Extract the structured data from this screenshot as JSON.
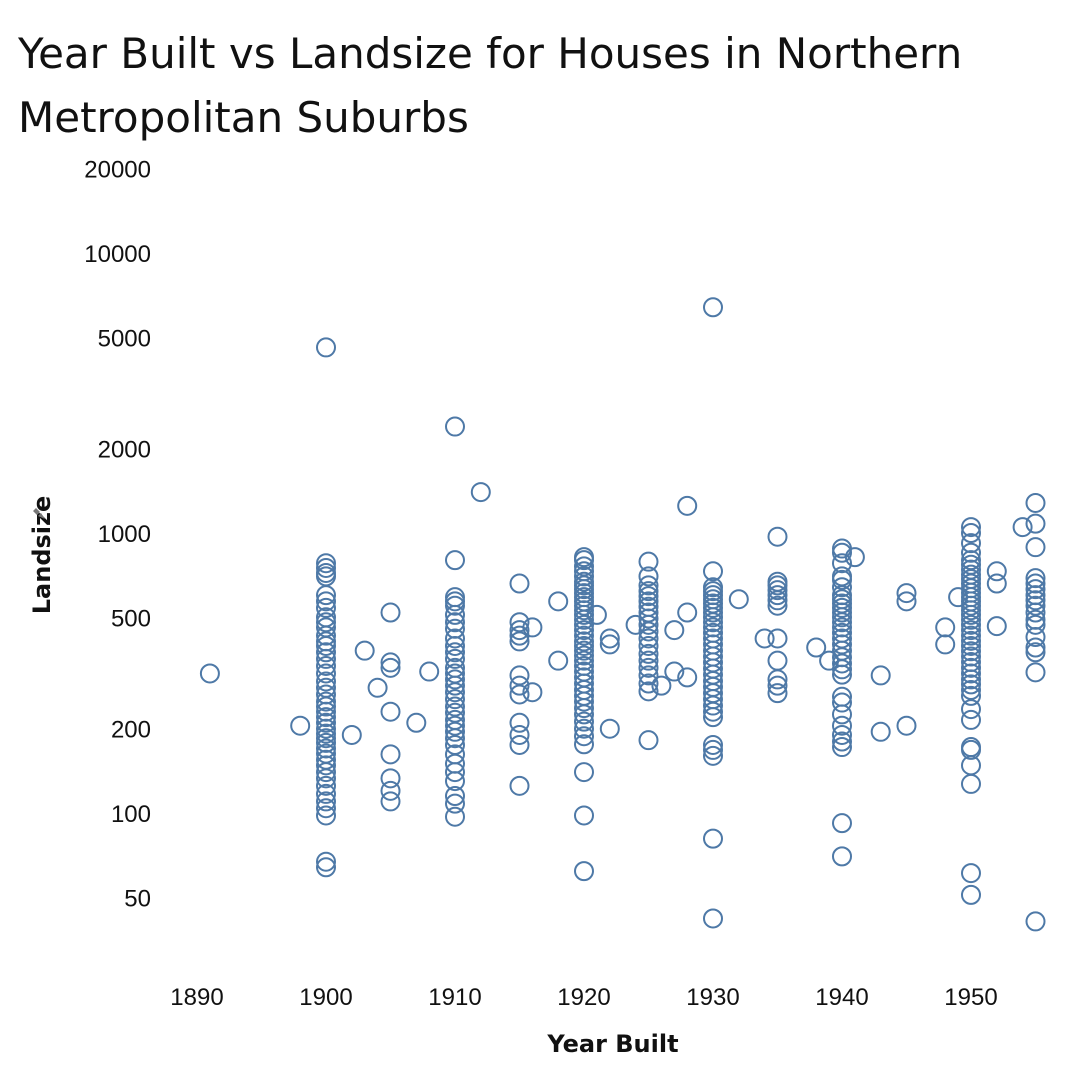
{
  "chart_data": {
    "type": "scatter",
    "title": "Year Built vs Landsize for Houses in Northern Metropolitan Suburbs",
    "xlabel": "Year Built",
    "ylabel": "Landsize",
    "x_scale": "linear",
    "y_scale": "log",
    "xlim": [
      1885,
      1957
    ],
    "ylim": [
      35,
      20000
    ],
    "x_ticks": [
      1890,
      1900,
      1910,
      1920,
      1930,
      1940,
      1950
    ],
    "y_ticks": [
      50,
      100,
      200,
      500,
      1000,
      2000,
      5000,
      10000,
      20000
    ],
    "marker_color": "#4e79a7",
    "grid": false,
    "points": [
      [
        1891,
        315
      ],
      [
        1898,
        205
      ],
      [
        1900,
        4600
      ],
      [
        1900,
        780
      ],
      [
        1900,
        750
      ],
      [
        1900,
        720
      ],
      [
        1900,
        700
      ],
      [
        1900,
        600
      ],
      [
        1900,
        570
      ],
      [
        1900,
        540
      ],
      [
        1900,
        500
      ],
      [
        1900,
        480
      ],
      [
        1900,
        460
      ],
      [
        1900,
        430
      ],
      [
        1900,
        410
      ],
      [
        1900,
        395
      ],
      [
        1900,
        375
      ],
      [
        1900,
        355
      ],
      [
        1900,
        335
      ],
      [
        1900,
        315
      ],
      [
        1900,
        295
      ],
      [
        1900,
        280
      ],
      [
        1900,
        265
      ],
      [
        1900,
        250
      ],
      [
        1900,
        240
      ],
      [
        1900,
        230
      ],
      [
        1900,
        220
      ],
      [
        1900,
        210
      ],
      [
        1900,
        200
      ],
      [
        1900,
        192
      ],
      [
        1900,
        185
      ],
      [
        1900,
        178
      ],
      [
        1900,
        170
      ],
      [
        1900,
        163
      ],
      [
        1900,
        155
      ],
      [
        1900,
        148
      ],
      [
        1900,
        140
      ],
      [
        1900,
        133
      ],
      [
        1900,
        125
      ],
      [
        1900,
        117
      ],
      [
        1900,
        110
      ],
      [
        1900,
        104
      ],
      [
        1900,
        98
      ],
      [
        1900,
        67
      ],
      [
        1900,
        64
      ],
      [
        1902,
        190
      ],
      [
        1903,
        380
      ],
      [
        1904,
        280
      ],
      [
        1905,
        520
      ],
      [
        1905,
        345
      ],
      [
        1905,
        330
      ],
      [
        1905,
        230
      ],
      [
        1905,
        162
      ],
      [
        1905,
        133
      ],
      [
        1905,
        120
      ],
      [
        1905,
        110
      ],
      [
        1907,
        210
      ],
      [
        1908,
        320
      ],
      [
        1910,
        2400
      ],
      [
        1910,
        800
      ],
      [
        1910,
        590
      ],
      [
        1910,
        570
      ],
      [
        1910,
        550
      ],
      [
        1910,
        510
      ],
      [
        1910,
        480
      ],
      [
        1910,
        455
      ],
      [
        1910,
        420
      ],
      [
        1910,
        395
      ],
      [
        1910,
        375
      ],
      [
        1910,
        355
      ],
      [
        1910,
        330
      ],
      [
        1910,
        315
      ],
      [
        1910,
        300
      ],
      [
        1910,
        285
      ],
      [
        1910,
        270
      ],
      [
        1910,
        255
      ],
      [
        1910,
        240
      ],
      [
        1910,
        228
      ],
      [
        1910,
        215
      ],
      [
        1910,
        205
      ],
      [
        1910,
        195
      ],
      [
        1910,
        185
      ],
      [
        1910,
        175
      ],
      [
        1910,
        162
      ],
      [
        1910,
        150
      ],
      [
        1910,
        140
      ],
      [
        1910,
        130
      ],
      [
        1910,
        115
      ],
      [
        1910,
        108
      ],
      [
        1910,
        97
      ],
      [
        1912,
        1400
      ],
      [
        1915,
        660
      ],
      [
        1915,
        480
      ],
      [
        1915,
        450
      ],
      [
        1915,
        430
      ],
      [
        1915,
        410
      ],
      [
        1915,
        310
      ],
      [
        1915,
        285
      ],
      [
        1915,
        265
      ],
      [
        1915,
        210
      ],
      [
        1915,
        190
      ],
      [
        1915,
        175
      ],
      [
        1915,
        125
      ],
      [
        1916,
        270
      ],
      [
        1916,
        460
      ],
      [
        1918,
        570
      ],
      [
        1918,
        350
      ],
      [
        1920,
        820
      ],
      [
        1920,
        800
      ],
      [
        1920,
        760
      ],
      [
        1920,
        730
      ],
      [
        1920,
        700
      ],
      [
        1920,
        670
      ],
      [
        1920,
        650
      ],
      [
        1920,
        630
      ],
      [
        1920,
        610
      ],
      [
        1920,
        590
      ],
      [
        1920,
        570
      ],
      [
        1920,
        550
      ],
      [
        1920,
        530
      ],
      [
        1920,
        510
      ],
      [
        1920,
        490
      ],
      [
        1920,
        470
      ],
      [
        1920,
        450
      ],
      [
        1920,
        430
      ],
      [
        1920,
        410
      ],
      [
        1920,
        395
      ],
      [
        1920,
        380
      ],
      [
        1920,
        365
      ],
      [
        1920,
        350
      ],
      [
        1920,
        335
      ],
      [
        1920,
        320
      ],
      [
        1920,
        305
      ],
      [
        1920,
        290
      ],
      [
        1920,
        275
      ],
      [
        1920,
        262
      ],
      [
        1920,
        250
      ],
      [
        1920,
        237
      ],
      [
        1920,
        225
      ],
      [
        1920,
        212
      ],
      [
        1920,
        200
      ],
      [
        1920,
        188
      ],
      [
        1920,
        176
      ],
      [
        1920,
        140
      ],
      [
        1920,
        98
      ],
      [
        1920,
        62
      ],
      [
        1921,
        510
      ],
      [
        1922,
        420
      ],
      [
        1922,
        400
      ],
      [
        1922,
        200
      ],
      [
        1924,
        470
      ],
      [
        1925,
        790
      ],
      [
        1925,
        700
      ],
      [
        1925,
        650
      ],
      [
        1925,
        620
      ],
      [
        1925,
        595
      ],
      [
        1925,
        570
      ],
      [
        1925,
        545
      ],
      [
        1925,
        520
      ],
      [
        1925,
        495
      ],
      [
        1925,
        470
      ],
      [
        1925,
        445
      ],
      [
        1925,
        420
      ],
      [
        1925,
        395
      ],
      [
        1925,
        370
      ],
      [
        1925,
        350
      ],
      [
        1925,
        330
      ],
      [
        1925,
        310
      ],
      [
        1925,
        290
      ],
      [
        1925,
        272
      ],
      [
        1925,
        182
      ],
      [
        1926,
        285
      ],
      [
        1927,
        450
      ],
      [
        1927,
        320
      ],
      [
        1928,
        1250
      ],
      [
        1928,
        520
      ],
      [
        1928,
        305
      ],
      [
        1930,
        6400
      ],
      [
        1930,
        730
      ],
      [
        1930,
        640
      ],
      [
        1930,
        620
      ],
      [
        1930,
        600
      ],
      [
        1930,
        580
      ],
      [
        1930,
        560
      ],
      [
        1930,
        540
      ],
      [
        1930,
        520
      ],
      [
        1930,
        500
      ],
      [
        1930,
        480
      ],
      [
        1930,
        460
      ],
      [
        1930,
        440
      ],
      [
        1930,
        420
      ],
      [
        1930,
        400
      ],
      [
        1930,
        380
      ],
      [
        1930,
        362
      ],
      [
        1930,
        345
      ],
      [
        1930,
        328
      ],
      [
        1930,
        312
      ],
      [
        1930,
        296
      ],
      [
        1930,
        282
      ],
      [
        1930,
        268
      ],
      [
        1930,
        255
      ],
      [
        1930,
        242
      ],
      [
        1930,
        230
      ],
      [
        1930,
        220
      ],
      [
        1930,
        175
      ],
      [
        1930,
        168
      ],
      [
        1930,
        160
      ],
      [
        1930,
        81
      ],
      [
        1930,
        42
      ],
      [
        1932,
        580
      ],
      [
        1934,
        420
      ],
      [
        1935,
        970
      ],
      [
        1935,
        670
      ],
      [
        1935,
        650
      ],
      [
        1935,
        625
      ],
      [
        1935,
        600
      ],
      [
        1935,
        575
      ],
      [
        1935,
        550
      ],
      [
        1935,
        420
      ],
      [
        1935,
        350
      ],
      [
        1935,
        300
      ],
      [
        1935,
        285
      ],
      [
        1935,
        268
      ],
      [
        1938,
        390
      ],
      [
        1939,
        350
      ],
      [
        1940,
        880
      ],
      [
        1940,
        850
      ],
      [
        1940,
        780
      ],
      [
        1940,
        700
      ],
      [
        1940,
        680
      ],
      [
        1940,
        640
      ],
      [
        1940,
        600
      ],
      [
        1940,
        580
      ],
      [
        1940,
        560
      ],
      [
        1940,
        540
      ],
      [
        1940,
        520
      ],
      [
        1940,
        500
      ],
      [
        1940,
        480
      ],
      [
        1940,
        460
      ],
      [
        1940,
        440
      ],
      [
        1940,
        420
      ],
      [
        1940,
        400
      ],
      [
        1940,
        380
      ],
      [
        1940,
        360
      ],
      [
        1940,
        342
      ],
      [
        1940,
        326
      ],
      [
        1940,
        312
      ],
      [
        1940,
        260
      ],
      [
        1940,
        248
      ],
      [
        1940,
        225
      ],
      [
        1940,
        205
      ],
      [
        1940,
        190
      ],
      [
        1940,
        180
      ],
      [
        1940,
        172
      ],
      [
        1940,
        92
      ],
      [
        1940,
        70
      ],
      [
        1941,
        820
      ],
      [
        1943,
        310
      ],
      [
        1943,
        195
      ],
      [
        1945,
        610
      ],
      [
        1945,
        570
      ],
      [
        1945,
        205
      ],
      [
        1948,
        460
      ],
      [
        1948,
        400
      ],
      [
        1949,
        590
      ],
      [
        1950,
        1050
      ],
      [
        1950,
        1000
      ],
      [
        1950,
        920
      ],
      [
        1950,
        850
      ],
      [
        1950,
        800
      ],
      [
        1950,
        770
      ],
      [
        1950,
        740
      ],
      [
        1950,
        710
      ],
      [
        1950,
        685
      ],
      [
        1950,
        660
      ],
      [
        1950,
        635
      ],
      [
        1950,
        612
      ],
      [
        1950,
        590
      ],
      [
        1950,
        570
      ],
      [
        1950,
        550
      ],
      [
        1950,
        530
      ],
      [
        1950,
        510
      ],
      [
        1950,
        490
      ],
      [
        1950,
        470
      ],
      [
        1950,
        450
      ],
      [
        1950,
        430
      ],
      [
        1950,
        412
      ],
      [
        1950,
        395
      ],
      [
        1950,
        378
      ],
      [
        1950,
        362
      ],
      [
        1950,
        346
      ],
      [
        1950,
        330
      ],
      [
        1950,
        315
      ],
      [
        1950,
        300
      ],
      [
        1950,
        288
      ],
      [
        1950,
        275
      ],
      [
        1950,
        262
      ],
      [
        1950,
        235
      ],
      [
        1950,
        215
      ],
      [
        1950,
        172
      ],
      [
        1950,
        168
      ],
      [
        1950,
        148
      ],
      [
        1950,
        127
      ],
      [
        1950,
        61
      ],
      [
        1950,
        51
      ],
      [
        1952,
        730
      ],
      [
        1952,
        660
      ],
      [
        1952,
        465
      ],
      [
        1954,
        1050
      ],
      [
        1955,
        1280
      ],
      [
        1955,
        1080
      ],
      [
        1955,
        890
      ],
      [
        1955,
        690
      ],
      [
        1955,
        660
      ],
      [
        1955,
        630
      ],
      [
        1955,
        600
      ],
      [
        1955,
        575
      ],
      [
        1955,
        550
      ],
      [
        1955,
        520
      ],
      [
        1955,
        490
      ],
      [
        1955,
        470
      ],
      [
        1955,
        425
      ],
      [
        1955,
        390
      ],
      [
        1955,
        375
      ],
      [
        1955,
        318
      ],
      [
        1955,
        41
      ]
    ]
  }
}
